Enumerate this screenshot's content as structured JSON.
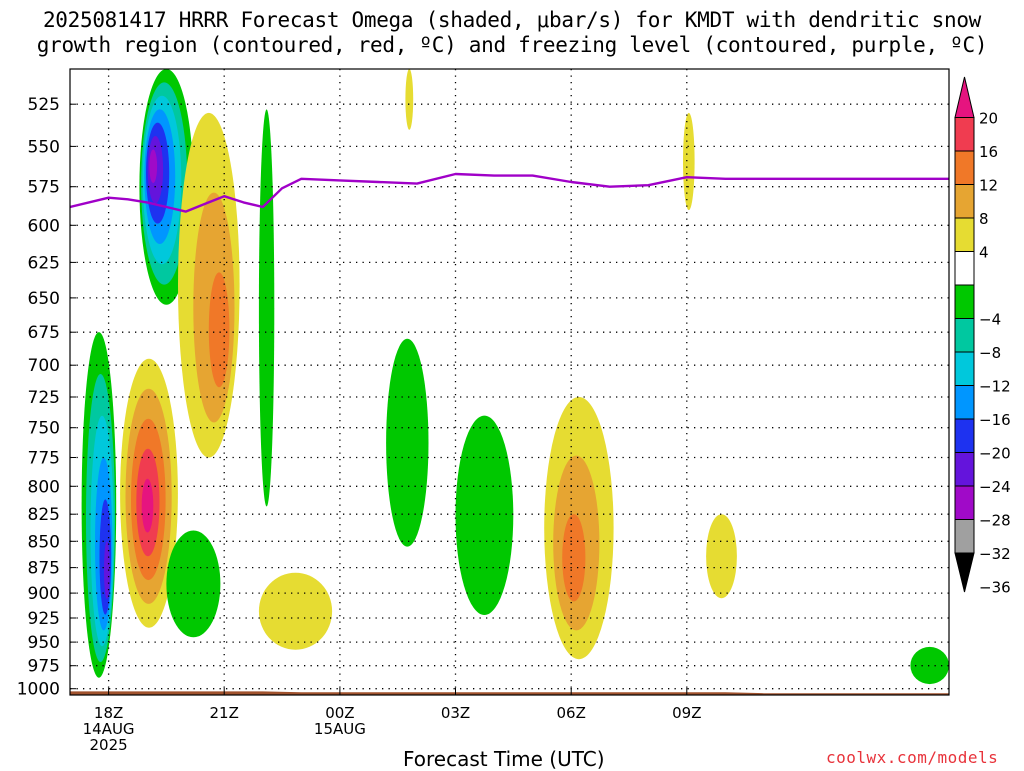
{
  "title": {
    "line1": "2025081417 HRRR Forecast Omega (shaded, μbar/s) for KMDT with dendritic snow",
    "line2": "growth region (contoured, red, ºC) and freezing level (contoured, purple, ºC)"
  },
  "xlabel": "Forecast Time (UTC)",
  "credit": "coolwx.com/models",
  "colors": {
    "freezing_level": "#a000c8",
    "ground": "#a0522d",
    "grid": "#000000"
  },
  "chart_data": {
    "type": "heatmap",
    "title": "2025081417 HRRR Forecast Omega (shaded, μbar/s) for KMDT with dendritic snow growth region (contoured, red, ºC) and freezing level (contoured, purple, ºC)",
    "xlabel": "Forecast Time (UTC)",
    "ylabel": "",
    "x_unit": "forecast hour (init 2025-08-14 17Z)",
    "xlim": [
      17,
      39.8
    ],
    "ylim": [
      1007,
      505
    ],
    "y_scale": "log-pressure (hPa)",
    "grid": "dotted",
    "x_ticks": [
      {
        "hour": 18,
        "labels": [
          "18Z",
          "14AUG",
          "2025"
        ]
      },
      {
        "hour": 21,
        "labels": [
          "21Z"
        ]
      },
      {
        "hour": 24,
        "labels": [
          "00Z",
          "15AUG"
        ]
      },
      {
        "hour": 27,
        "labels": [
          "03Z"
        ]
      },
      {
        "hour": 30,
        "labels": [
          "06Z"
        ]
      },
      {
        "hour": 33,
        "labels": [
          "09Z"
        ]
      }
    ],
    "y_ticks": [
      525,
      550,
      575,
      600,
      625,
      650,
      675,
      700,
      725,
      750,
      775,
      800,
      825,
      850,
      875,
      900,
      925,
      950,
      975,
      1000
    ],
    "colorbar": {
      "labels": [
        "20",
        "16",
        "12",
        "8",
        "4",
        "−4",
        "−8",
        "−12",
        "−16",
        "−20",
        "−24",
        "−28",
        "−32",
        "−36"
      ],
      "bins": [
        {
          "from": 16,
          "to": 20,
          "color": "#f03c50"
        },
        {
          "from": 12,
          "to": 16,
          "color": "#f07828"
        },
        {
          "from": 8,
          "to": 12,
          "color": "#e6a532"
        },
        {
          "from": 4,
          "to": 8,
          "color": "#e6dc32"
        },
        {
          "from": -4,
          "to": 4,
          "color": "#ffffff"
        },
        {
          "from": -8,
          "to": -4,
          "color": "#00c800"
        },
        {
          "from": -12,
          "to": -8,
          "color": "#00c8a0"
        },
        {
          "from": -16,
          "to": -12,
          "color": "#00c8dc"
        },
        {
          "from": -20,
          "to": -16,
          "color": "#0096ff"
        },
        {
          "from": -24,
          "to": -20,
          "color": "#1e32f0"
        },
        {
          "from": -28,
          "to": -24,
          "color": "#6414dc"
        },
        {
          "from": -32,
          "to": -28,
          "color": "#a00ac8"
        },
        {
          "from": -36,
          "to": -32,
          "color": "#a0a0a0"
        }
      ],
      "over_color": "#e6147f",
      "under_color": "#000000"
    },
    "series": [
      {
        "kind": "freezing_level",
        "hour": [
          17.0,
          18.0,
          18.5,
          19.0,
          19.5,
          20.0,
          20.5,
          21.0,
          21.5,
          22.0,
          22.5,
          23.0,
          24.0,
          25.0,
          26.0,
          27.0,
          28.0,
          29.0,
          30.0,
          31.0,
          32.0,
          33.0,
          34.0,
          35.0,
          36.0,
          37.0,
          38.0,
          39.0,
          39.8
        ],
        "pressure": [
          588,
          582,
          583,
          585,
          588,
          591,
          586,
          581,
          585,
          588,
          576,
          570,
          571,
          572,
          573,
          567,
          568,
          568,
          572,
          575,
          574,
          569,
          570,
          570,
          570,
          570,
          570,
          570,
          570
        ]
      }
    ],
    "shaded_regions": [
      {
        "sign": "down",
        "level": -8,
        "hours": [
          18.8,
          20.2
        ],
        "pressure": [
          505,
          655
        ],
        "peak": -28,
        "peak_at": [
          19.1,
          560
        ]
      },
      {
        "sign": "up",
        "level": 4,
        "hours": [
          19.8,
          21.4
        ],
        "pressure": [
          530,
          775
        ],
        "peak": 12,
        "peak_at": [
          21.0,
          690
        ]
      },
      {
        "sign": "down",
        "level": -4,
        "hours": [
          21.9,
          22.3
        ],
        "pressure": [
          528,
          818
        ]
      },
      {
        "sign": "down",
        "level": -4,
        "hours": [
          17.3,
          18.2
        ],
        "pressure": [
          675,
          988
        ],
        "peak": -24,
        "peak_at": [
          18.0,
          890
        ]
      },
      {
        "sign": "up",
        "level": 4,
        "hours": [
          18.3,
          19.8
        ],
        "pressure": [
          695,
          935
        ],
        "peak": 20,
        "peak_at": [
          19.0,
          820
        ]
      },
      {
        "sign": "down",
        "level": -4,
        "hours": [
          19.5,
          20.9
        ],
        "pressure": [
          840,
          945
        ]
      },
      {
        "sign": "up",
        "level": 4,
        "hours": [
          21.9,
          23.8
        ],
        "pressure": [
          880,
          958
        ]
      },
      {
        "sign": "up",
        "level": 4,
        "hours": [
          25.7,
          25.9
        ],
        "pressure": [
          505,
          540
        ]
      },
      {
        "sign": "down",
        "level": -4,
        "hours": [
          25.2,
          26.3
        ],
        "pressure": [
          680,
          855
        ]
      },
      {
        "sign": "down",
        "level": -4,
        "hours": [
          27.0,
          28.5
        ],
        "pressure": [
          740,
          922
        ]
      },
      {
        "sign": "up",
        "level": 4,
        "hours": [
          29.3,
          31.1
        ],
        "pressure": [
          725,
          968
        ],
        "peak": 12,
        "peak_at": [
          30.0,
          880
        ]
      },
      {
        "sign": "up",
        "level": 4,
        "hours": [
          32.9,
          33.2
        ],
        "pressure": [
          530,
          590
        ]
      },
      {
        "sign": "up",
        "level": 4,
        "hours": [
          33.5,
          34.3
        ],
        "pressure": [
          825,
          905
        ]
      },
      {
        "sign": "down",
        "level": -4,
        "hours": [
          38.8,
          39.8
        ],
        "pressure": [
          955,
          995
        ]
      }
    ]
  }
}
